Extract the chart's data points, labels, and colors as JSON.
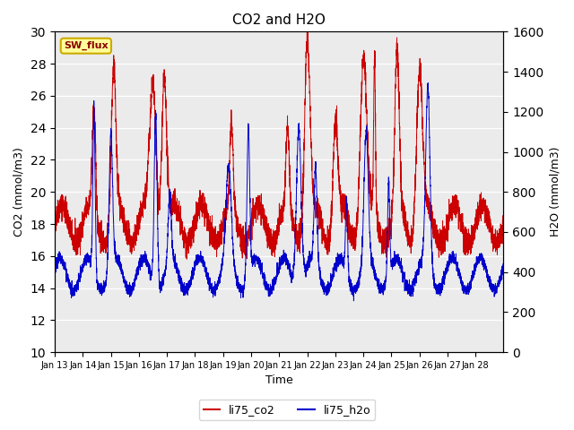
{
  "title": "CO2 and H2O",
  "xlabel": "Time",
  "ylabel_left": "CO2 (mmol/m3)",
  "ylabel_right": "H2O (mmol/m3)",
  "ylim_left": [
    10,
    30
  ],
  "ylim_right": [
    0,
    1600
  ],
  "yticks_left": [
    10,
    12,
    14,
    16,
    18,
    20,
    22,
    24,
    26,
    28,
    30
  ],
  "yticks_right": [
    0,
    200,
    400,
    600,
    800,
    1000,
    1200,
    1400,
    1600
  ],
  "xtick_labels": [
    "Jan 13",
    "Jan 14",
    "Jan 15",
    "Jan 16",
    "Jan 17",
    "Jan 18",
    "Jan 19",
    "Jan 20",
    "Jan 21",
    "Jan 22",
    "Jan 23",
    "Jan 24",
    "Jan 25",
    "Jan 26",
    "Jan 27",
    "Jan 28"
  ],
  "color_co2": "#cc0000",
  "color_h2o": "#0000cc",
  "legend_label_co2": "li75_co2",
  "legend_label_h2o": "li75_h2o",
  "sw_flux_label": "SW_flux",
  "sw_flux_bg": "#ffff99",
  "sw_flux_border": "#ccaa00",
  "plot_bg_color": "#ebebeb"
}
